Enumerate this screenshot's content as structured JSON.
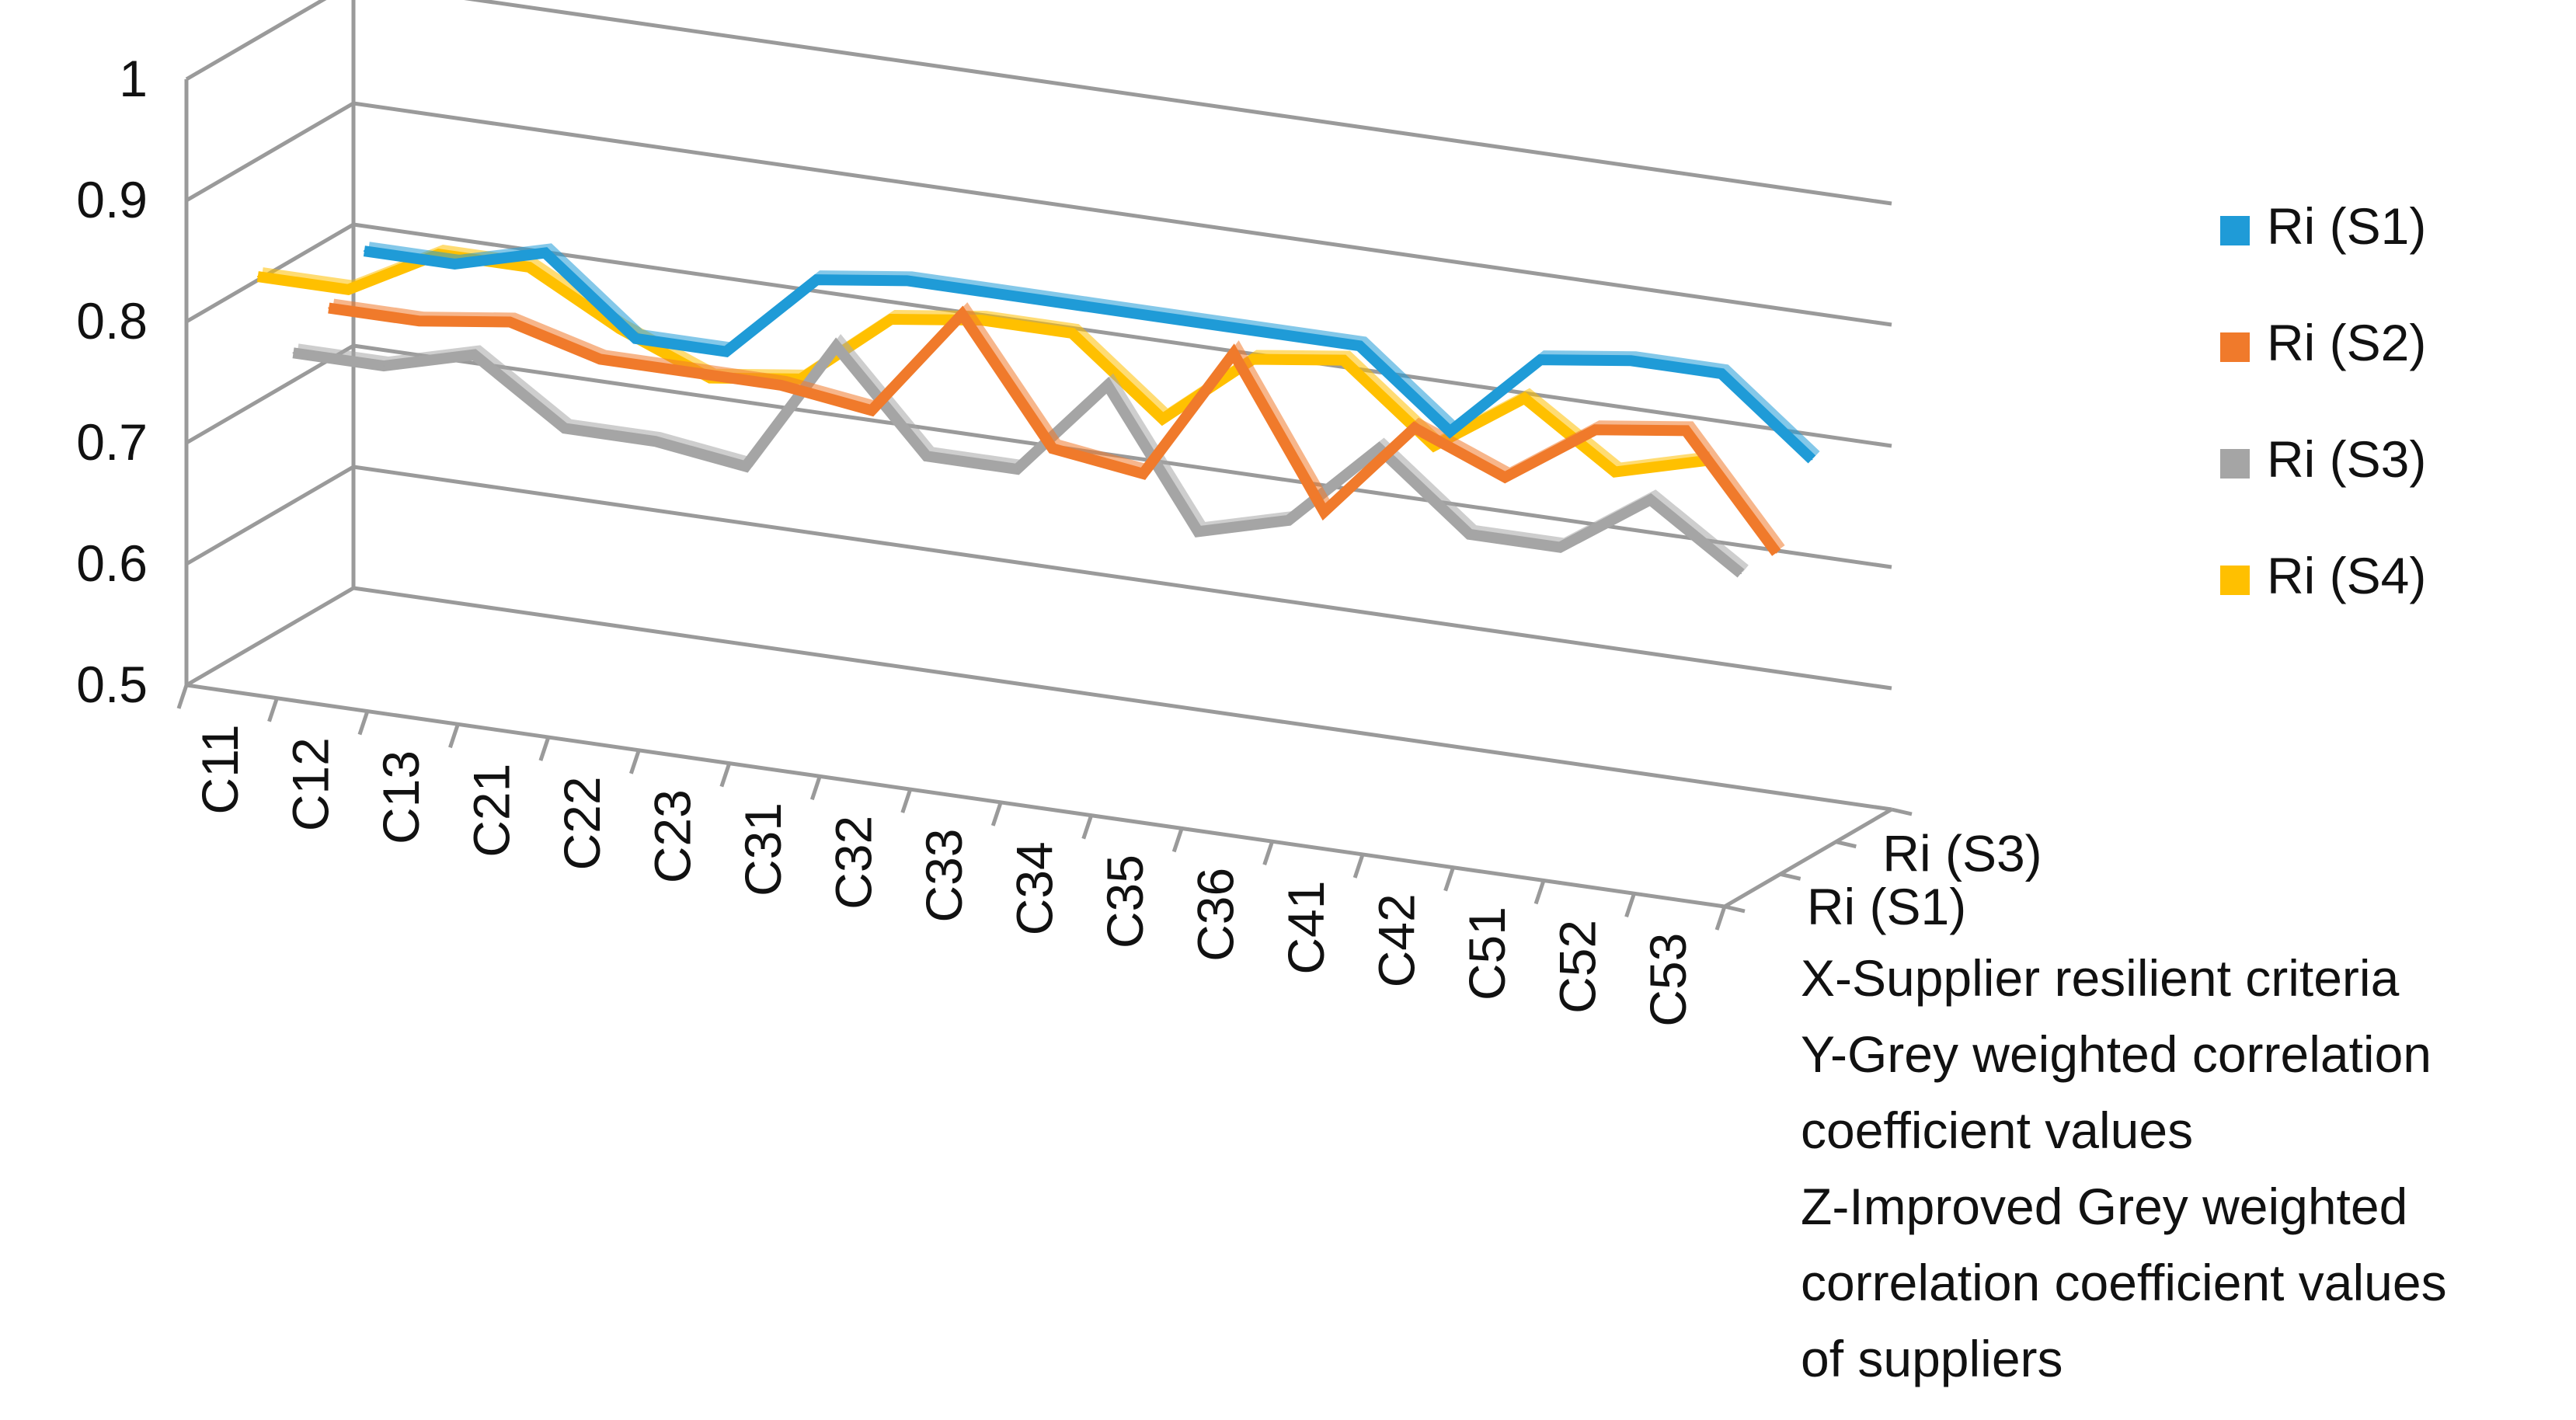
{
  "chart_data": {
    "type": "line",
    "categories": [
      "C11",
      "C12",
      "C13",
      "C21",
      "C22",
      "C23",
      "C31",
      "C32",
      "C33",
      "C34",
      "C35",
      "C36",
      "C41",
      "C42",
      "C51",
      "C52",
      "C53"
    ],
    "y_ticks": [
      "0.5",
      "0.6",
      "0.7",
      "0.8",
      "0.9",
      "1"
    ],
    "ylim": [
      0.5,
      1
    ],
    "z_ticks": [
      "Ri (S1)",
      "Ri (S3)"
    ],
    "grid": true,
    "legend_position": "right",
    "series": [
      {
        "name": "Ri (S1)",
        "color": "#1f9bd7",
        "values": [
          0.8,
          0.8,
          0.82,
          0.76,
          0.76,
          0.83,
          0.84,
          0.84,
          0.84,
          0.84,
          0.84,
          0.84,
          0.78,
          0.85,
          0.86,
          0.86,
          0.8
        ]
      },
      {
        "name": "Ri (S2)",
        "color": "#f07a2b",
        "values": [
          0.77,
          0.77,
          0.78,
          0.76,
          0.76,
          0.76,
          0.75,
          0.84,
          0.74,
          0.73,
          0.84,
          0.72,
          0.8,
          0.77,
          0.82,
          0.83,
          0.74
        ]
      },
      {
        "name": "Ri (S3)",
        "color": "#a5a5a5",
        "values": [
          0.75,
          0.75,
          0.77,
          0.72,
          0.72,
          0.71,
          0.82,
          0.74,
          0.74,
          0.82,
          0.71,
          0.73,
          0.8,
          0.74,
          0.74,
          0.79,
          0.74
        ]
      },
      {
        "name": "Ri (S4)",
        "color": "#ffc000",
        "values": [
          0.83,
          0.83,
          0.87,
          0.87,
          0.83,
          0.8,
          0.81,
          0.87,
          0.88,
          0.88,
          0.82,
          0.88,
          0.89,
          0.83,
          0.88,
          0.83,
          0.85
        ]
      }
    ]
  },
  "notes": {
    "line1": "X-Supplier resilient criteria",
    "line2": "Y-Grey weighted correlation",
    "line3": "coefficient values",
    "line4": "Z-Improved Grey weighted",
    "line5": "correlation coefficient values",
    "line6": "of suppliers"
  }
}
